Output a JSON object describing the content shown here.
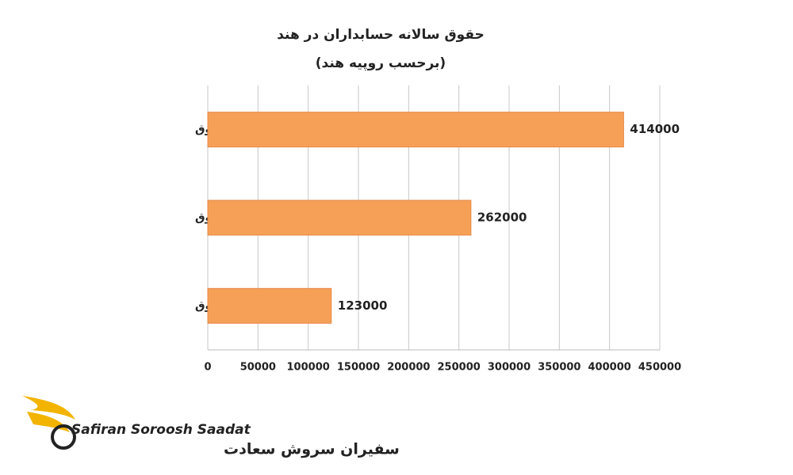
{
  "chart_data": {
    "type": "bar",
    "orientation": "horizontal",
    "title": "حقوق سالانه حسابداران در هند",
    "subtitle": "(برحسب روپیه هند)",
    "categories": [
      "بیش ترین حقوق",
      "متوسط حقوق",
      "کم ترین حقوق"
    ],
    "values": [
      414000,
      262000,
      123000
    ],
    "color": "#f5a056",
    "xlim": [
      0,
      450000
    ],
    "xticks": [
      0,
      50000,
      100000,
      150000,
      200000,
      250000,
      300000,
      350000,
      400000,
      450000
    ],
    "grid": true
  },
  "brand": {
    "name_en": "Safiran Soroosh Saadat",
    "name_fa": "سفیران سروش سعادت"
  }
}
